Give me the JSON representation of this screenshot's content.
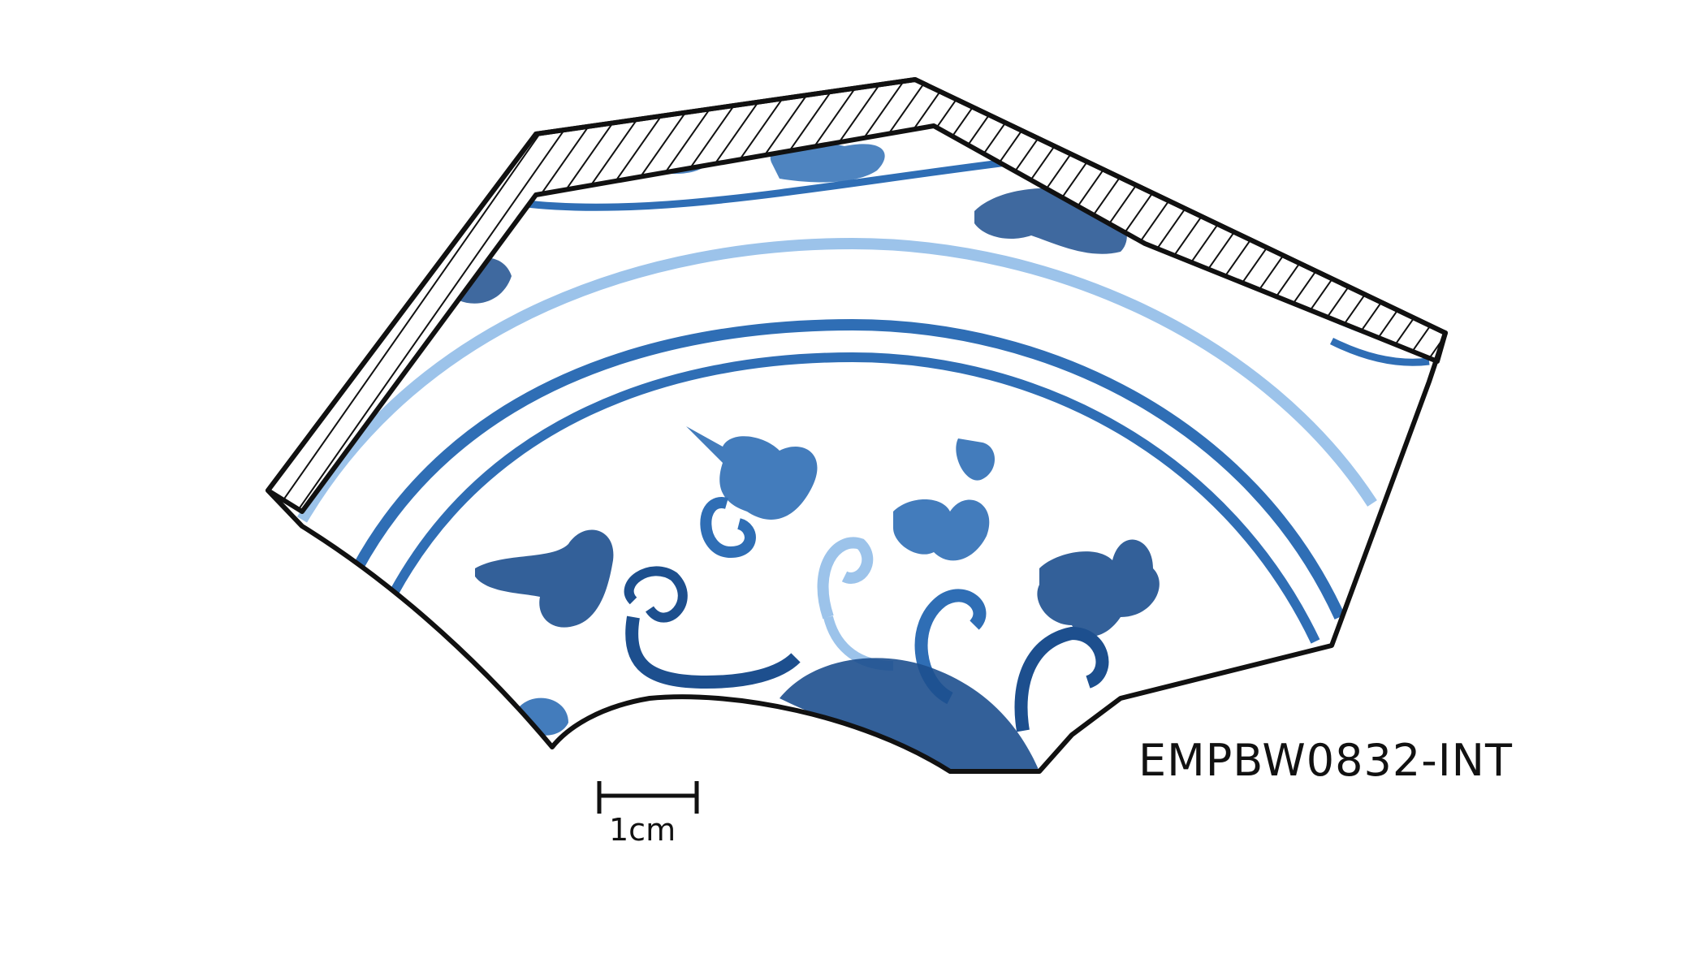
{
  "specimen": {
    "label": "EMPBW0832-INT"
  },
  "scale_bar": {
    "label": "1cm"
  },
  "illustration": {
    "subject-icon": "porcelain-sherd-drawing",
    "colors": {
      "outline": "#111111",
      "glaze_blue_dark": "#1d4f8e",
      "glaze_blue_mid": "#2f6eb5",
      "glaze_blue_light": "#9cc3ea",
      "body_white": "#ffffff"
    }
  }
}
